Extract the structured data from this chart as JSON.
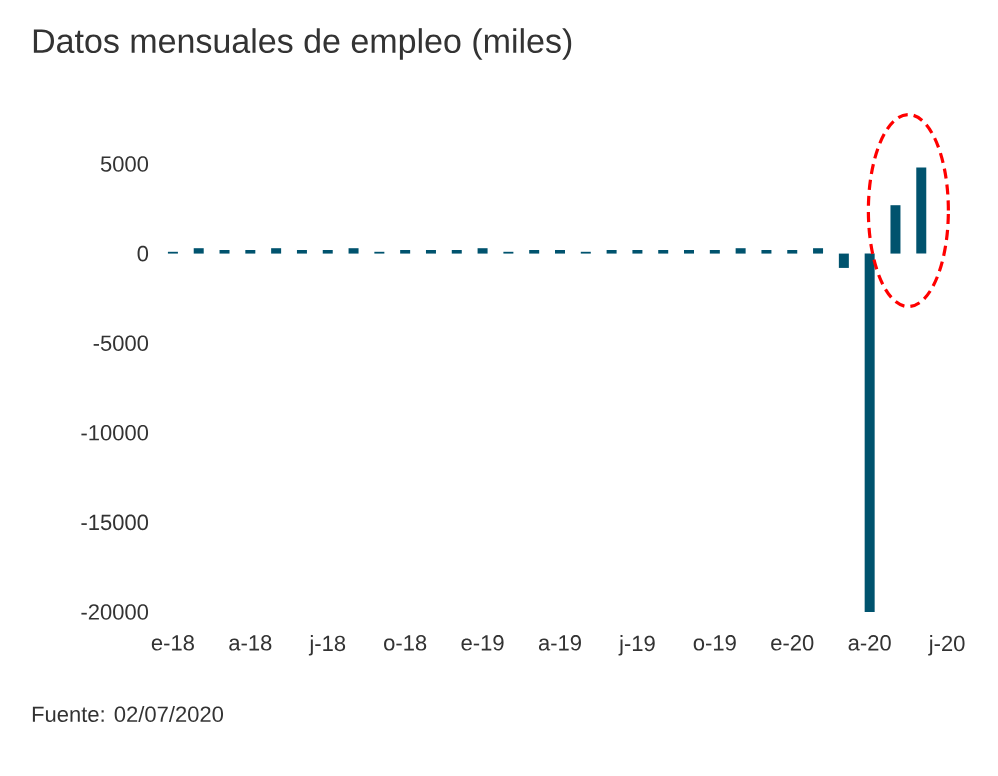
{
  "chart_data": {
    "type": "bar",
    "title": "Datos mensuales de empleo (miles)",
    "categories": [
      "e-18",
      null,
      null,
      "a-18",
      null,
      null,
      "j-18",
      null,
      null,
      "o-18",
      null,
      null,
      "e-19",
      null,
      null,
      "a-19",
      null,
      null,
      "j-19",
      null,
      null,
      "o-19",
      null,
      null,
      "e-20",
      null,
      null,
      "a-20",
      null,
      null,
      "j-20"
    ],
    "values": [
      100,
      300,
      200,
      200,
      300,
      200,
      200,
      300,
      100,
      200,
      200,
      200,
      300,
      100,
      200,
      200,
      100,
      200,
      200,
      200,
      200,
      200,
      300,
      200,
      200,
      300,
      -800,
      -20000,
      2700,
      4800,
      null
    ],
    "color": "#00536e",
    "ylim": [
      -20000,
      5000
    ],
    "yticks": [
      -20000,
      -15000,
      -10000,
      -5000,
      0,
      5000
    ],
    "annotations": [
      "Fuente: 02/07/2020"
    ]
  }
}
